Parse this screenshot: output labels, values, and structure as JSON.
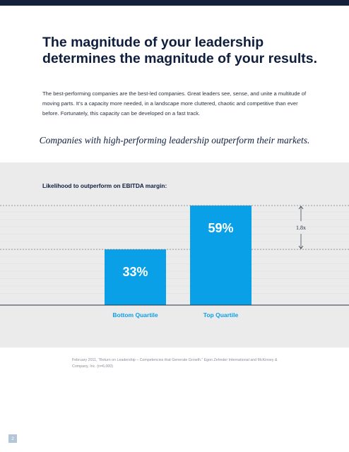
{
  "headline": "The magnitude of your leadership determines the magnitude of your results.",
  "intro": "The best-performing companies are the best-led companies. Great leaders see, sense, and unite a multitude of moving parts. It’s a capacity more needed, in a landscape more cluttered, chaotic and competitive than ever before. Fortunately, this capacity can be developed on a fast track.",
  "tagline": "Companies with high-performing leadership outperform their markets.",
  "footnote": "February 2011, “Return on Leadership – Competencies that Generate Growth.” Egon Zehnder International and McKinsey & Company, Inc. (n=6,000)",
  "page_number": "2",
  "colors": {
    "bar": "#0aa0e8",
    "background": "#ebebec",
    "heading": "#0f1e3d"
  },
  "chart_data": {
    "type": "bar",
    "title": "Likelihood to outperform on EBITDA margin:",
    "categories": [
      "Bottom Quartile",
      "Top Quartile"
    ],
    "values": [
      33,
      59
    ],
    "data_labels": [
      "33%",
      "59%"
    ],
    "ratio_annotation": "1.8x",
    "ylim": [
      0,
      59
    ],
    "grid": true,
    "xlabel": "",
    "ylabel": ""
  }
}
